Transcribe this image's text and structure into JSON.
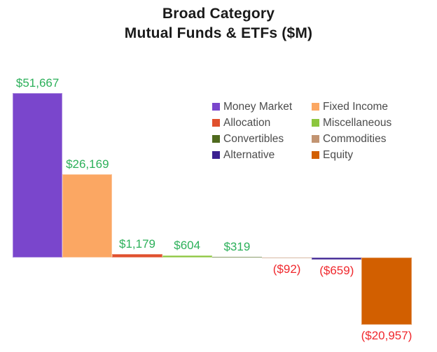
{
  "title": {
    "line1": "Broad Category",
    "line2": "Mutual Funds & ETFs ($M)"
  },
  "chart_data": {
    "type": "bar",
    "title": "Broad Category — Mutual Funds & ETFs ($M)",
    "categories": [
      "Money Market",
      "Fixed Income",
      "Allocation",
      "Miscellaneous",
      "Convertibles",
      "Commodities",
      "Alternative",
      "Equity"
    ],
    "values": [
      51667,
      26169,
      1179,
      604,
      319,
      -92,
      -659,
      -20957
    ],
    "value_labels": [
      "$51,667",
      "$26,169",
      "$1,179",
      "$604",
      "$319",
      "($92)",
      "($659)",
      "($20,957)"
    ],
    "bar_colors": [
      "#7A46CC",
      "#FBA763",
      "#E0502D",
      "#8CC63E",
      "#4F6A1E",
      "#C29472",
      "#3B2091",
      "#D25F00"
    ],
    "positive_label_color": "#2CB05A",
    "negative_label_color": "#F0282D",
    "xlabel": "",
    "ylabel": "",
    "ylim": [
      -21000,
      52000
    ],
    "baseline": 0,
    "grid": false,
    "axes_visible": false,
    "legend_position": "top-right",
    "legend_columns": 2
  }
}
